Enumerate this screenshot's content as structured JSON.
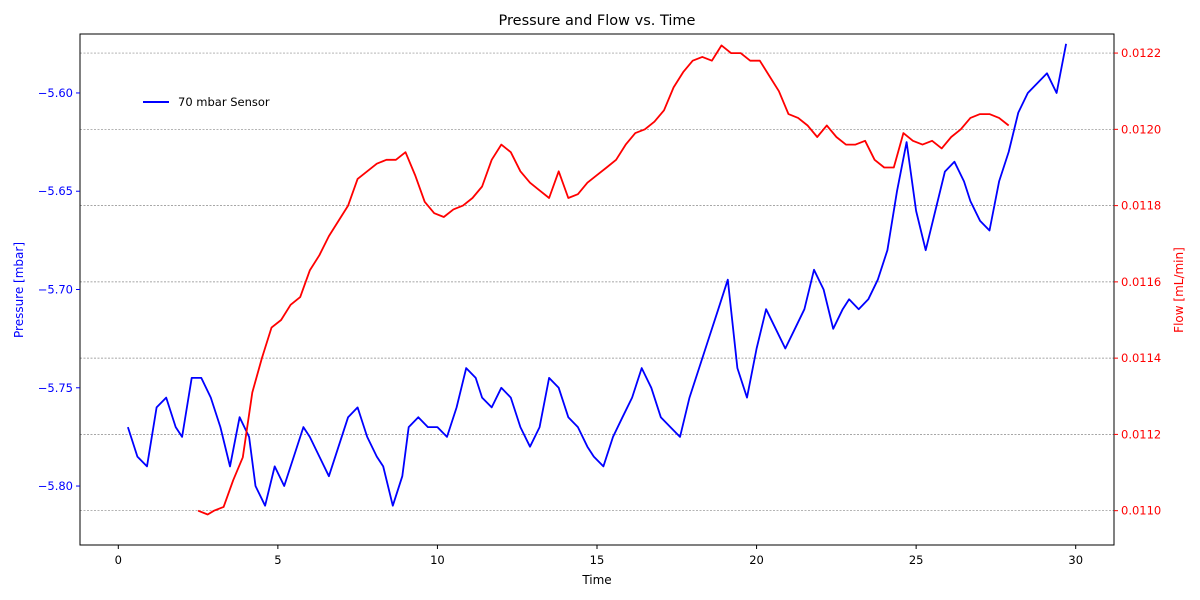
{
  "chart_data": {
    "type": "line",
    "title": "Pressure and Flow vs. Time",
    "xlabel": "Time",
    "ylabel_left": "Pressure [mbar]",
    "ylabel_right": "Flow [mL/min]",
    "xlim": [
      -1.2,
      31.2
    ],
    "ylim_left": [
      -5.83,
      -5.57
    ],
    "ylim_right": [
      0.01091,
      0.01225
    ],
    "x_ticks": [
      0,
      5,
      10,
      15,
      20,
      25,
      30
    ],
    "y_ticks_left": [
      -5.8,
      -5.75,
      -5.7,
      -5.65,
      -5.6
    ],
    "y_ticks_right": [
      0.011,
      0.0112,
      0.0114,
      0.0116,
      0.0118,
      0.012,
      0.0122
    ],
    "y_tick_labels_left": [
      "−5.80",
      "−5.75",
      "−5.70",
      "−5.65",
      "−5.60"
    ],
    "y_tick_labels_right": [
      "0.0110",
      "0.0112",
      "0.0114",
      "0.0116",
      "0.0118",
      "0.0120",
      "0.0122"
    ],
    "grid": "horizontal dashed at right-axis ticks",
    "legend": {
      "location": "upper-left",
      "entries": [
        {
          "label": "70 mbar Sensor",
          "color": "#0000ff"
        }
      ]
    },
    "series": [
      {
        "name": "70 mbar Sensor",
        "axis": "left",
        "color": "#0000ff",
        "x": [
          0.3,
          0.6,
          0.9,
          1.2,
          1.5,
          1.8,
          2.0,
          2.3,
          2.6,
          2.9,
          3.2,
          3.5,
          3.8,
          4.1,
          4.3,
          4.6,
          4.9,
          5.2,
          5.5,
          5.8,
          6.0,
          6.3,
          6.6,
          6.9,
          7.2,
          7.5,
          7.8,
          8.1,
          8.3,
          8.6,
          8.9,
          9.1,
          9.4,
          9.7,
          10.0,
          10.3,
          10.6,
          10.9,
          11.2,
          11.4,
          11.7,
          12.0,
          12.3,
          12.6,
          12.9,
          13.2,
          13.5,
          13.8,
          14.1,
          14.4,
          14.7,
          14.9,
          15.2,
          15.5,
          15.8,
          16.1,
          16.4,
          16.7,
          17.0,
          17.3,
          17.6,
          17.9,
          18.2,
          18.5,
          18.8,
          19.1,
          19.4,
          19.7,
          20.0,
          20.3,
          20.6,
          20.9,
          21.2,
          21.5,
          21.8,
          22.1,
          22.4,
          22.7,
          22.9,
          23.2,
          23.5,
          23.8,
          24.1,
          24.4,
          24.7,
          25.0,
          25.3,
          25.6,
          25.9,
          26.2,
          26.5,
          26.7,
          27.0,
          27.3,
          27.6,
          27.9,
          28.2,
          28.5,
          28.8,
          29.1,
          29.4,
          29.7
        ],
        "y": [
          -5.77,
          -5.785,
          -5.79,
          -5.76,
          -5.755,
          -5.77,
          -5.775,
          -5.745,
          -5.745,
          -5.755,
          -5.77,
          -5.79,
          -5.765,
          -5.775,
          -5.8,
          -5.81,
          -5.79,
          -5.8,
          -5.785,
          -5.77,
          -5.775,
          -5.785,
          -5.795,
          -5.78,
          -5.765,
          -5.76,
          -5.775,
          -5.785,
          -5.79,
          -5.81,
          -5.795,
          -5.77,
          -5.765,
          -5.77,
          -5.77,
          -5.775,
          -5.76,
          -5.74,
          -5.745,
          -5.755,
          -5.76,
          -5.75,
          -5.755,
          -5.77,
          -5.78,
          -5.77,
          -5.745,
          -5.75,
          -5.765,
          -5.77,
          -5.78,
          -5.785,
          -5.79,
          -5.775,
          -5.765,
          -5.755,
          -5.74,
          -5.75,
          -5.765,
          -5.77,
          -5.775,
          -5.755,
          -5.74,
          -5.725,
          -5.71,
          -5.695,
          -5.74,
          -5.755,
          -5.73,
          -5.71,
          -5.72,
          -5.73,
          -5.72,
          -5.71,
          -5.69,
          -5.7,
          -5.72,
          -5.71,
          -5.705,
          -5.71,
          -5.705,
          -5.695,
          -5.68,
          -5.65,
          -5.625,
          -5.66,
          -5.68,
          -5.66,
          -5.64,
          -5.635,
          -5.645,
          -5.655,
          -5.665,
          -5.67,
          -5.645,
          -5.63,
          -5.61,
          -5.6,
          -5.595,
          -5.59,
          -5.6,
          -5.575
        ]
      },
      {
        "name": "",
        "axis": "right",
        "color": "#ff0000",
        "x": [
          2.5,
          2.8,
          3.0,
          3.3,
          3.6,
          3.9,
          4.2,
          4.5,
          4.8,
          5.1,
          5.4,
          5.7,
          6.0,
          6.3,
          6.6,
          6.9,
          7.2,
          7.5,
          7.8,
          8.1,
          8.4,
          8.7,
          9.0,
          9.3,
          9.6,
          9.9,
          10.2,
          10.5,
          10.8,
          11.1,
          11.4,
          11.7,
          12.0,
          12.3,
          12.6,
          12.9,
          13.2,
          13.5,
          13.8,
          14.1,
          14.4,
          14.7,
          15.0,
          15.3,
          15.6,
          15.9,
          16.2,
          16.5,
          16.8,
          17.1,
          17.4,
          17.7,
          18.0,
          18.3,
          18.6,
          18.9,
          19.2,
          19.5,
          19.8,
          20.1,
          20.4,
          20.7,
          21.0,
          21.3,
          21.6,
          21.9,
          22.2,
          22.5,
          22.8,
          23.1,
          23.4,
          23.7,
          24.0,
          24.3,
          24.6,
          24.9,
          25.2,
          25.5,
          25.8,
          26.1,
          26.4,
          26.7,
          27.0,
          27.3,
          27.6,
          27.9
        ],
        "y": [
          0.011,
          0.01099,
          0.011,
          0.01101,
          0.01108,
          0.01114,
          0.01131,
          0.0114,
          0.01148,
          0.0115,
          0.01154,
          0.01156,
          0.01163,
          0.01167,
          0.01172,
          0.01176,
          0.0118,
          0.01187,
          0.01189,
          0.01191,
          0.01192,
          0.01192,
          0.01194,
          0.01188,
          0.01181,
          0.01178,
          0.01177,
          0.01179,
          0.0118,
          0.01182,
          0.01185,
          0.01192,
          0.01196,
          0.01194,
          0.01189,
          0.01186,
          0.01184,
          0.01182,
          0.01189,
          0.01182,
          0.01183,
          0.01186,
          0.01188,
          0.0119,
          0.01192,
          0.01196,
          0.01199,
          0.012,
          0.01202,
          0.01205,
          0.01211,
          0.01215,
          0.01218,
          0.01219,
          0.01218,
          0.01222,
          0.0122,
          0.0122,
          0.01218,
          0.01218,
          0.01214,
          0.0121,
          0.01204,
          0.01203,
          0.01201,
          0.01198,
          0.01201,
          0.01198,
          0.01196,
          0.01196,
          0.01197,
          0.01192,
          0.0119,
          0.0119,
          0.01199,
          0.01197,
          0.01196,
          0.01197,
          0.01195,
          0.01198,
          0.012,
          0.01203,
          0.01204,
          0.01204,
          0.01203,
          0.01201
        ]
      }
    ]
  }
}
